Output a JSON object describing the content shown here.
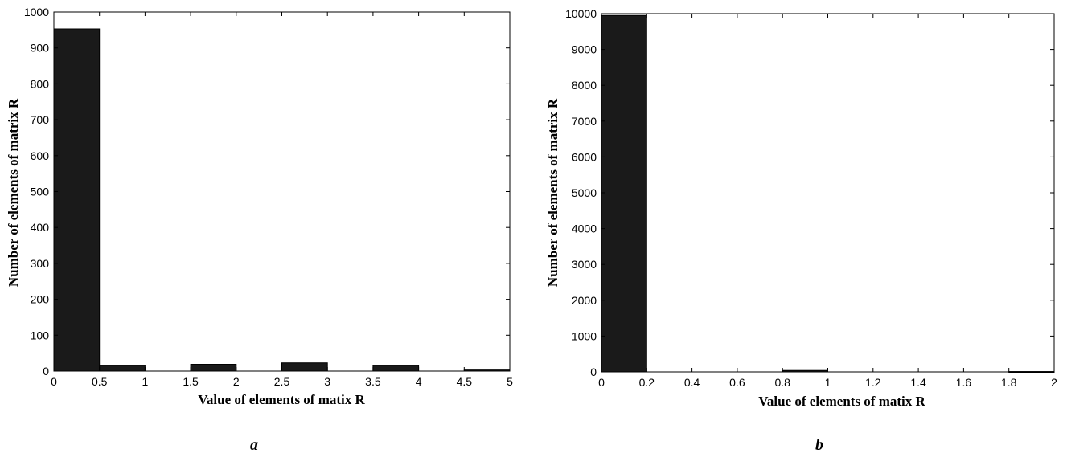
{
  "chart_data": [
    {
      "type": "bar",
      "panel_label": "a",
      "xlabel": "Value of elements of matix R",
      "ylabel": "Number of elements of matrix R",
      "xlim": [
        0,
        5
      ],
      "ylim": [
        0,
        1000
      ],
      "xticks": [
        "0",
        "0.5",
        "1",
        "1.5",
        "2",
        "2.5",
        "3",
        "3.5",
        "4",
        "4.5",
        "5"
      ],
      "yticks": [
        "0",
        "100",
        "200",
        "300",
        "400",
        "500",
        "600",
        "700",
        "800",
        "900",
        "1000"
      ],
      "bin_width": 0.5,
      "bins": [
        0,
        0.5,
        1,
        1.5,
        2,
        2.5,
        3,
        3.5,
        4,
        4.5
      ],
      "values": [
        953,
        16,
        0,
        19,
        0,
        23,
        0,
        16,
        0,
        3
      ],
      "bar_color": "#1a1a1a",
      "grid": false
    },
    {
      "type": "bar",
      "panel_label": "b",
      "xlabel": "Value of elements of matix R",
      "ylabel": "Number of elements of matrix R",
      "xlim": [
        0,
        2
      ],
      "ylim": [
        0,
        10000
      ],
      "xticks": [
        "0",
        "0.2",
        "0.4",
        "0.6",
        "0.8",
        "1",
        "1.2",
        "1.4",
        "1.6",
        "1.8",
        "2"
      ],
      "yticks": [
        "0",
        "1000",
        "2000",
        "3000",
        "4000",
        "5000",
        "6000",
        "7000",
        "8000",
        "9000",
        "10000"
      ],
      "bin_width": 0.2,
      "bins": [
        0,
        0.2,
        0.4,
        0.6,
        0.8,
        1,
        1.2,
        1.4,
        1.6,
        1.8
      ],
      "values": [
        9950,
        0,
        0,
        0,
        40,
        0,
        0,
        0,
        0,
        10
      ],
      "bar_color": "#1a1a1a",
      "grid": false
    }
  ]
}
